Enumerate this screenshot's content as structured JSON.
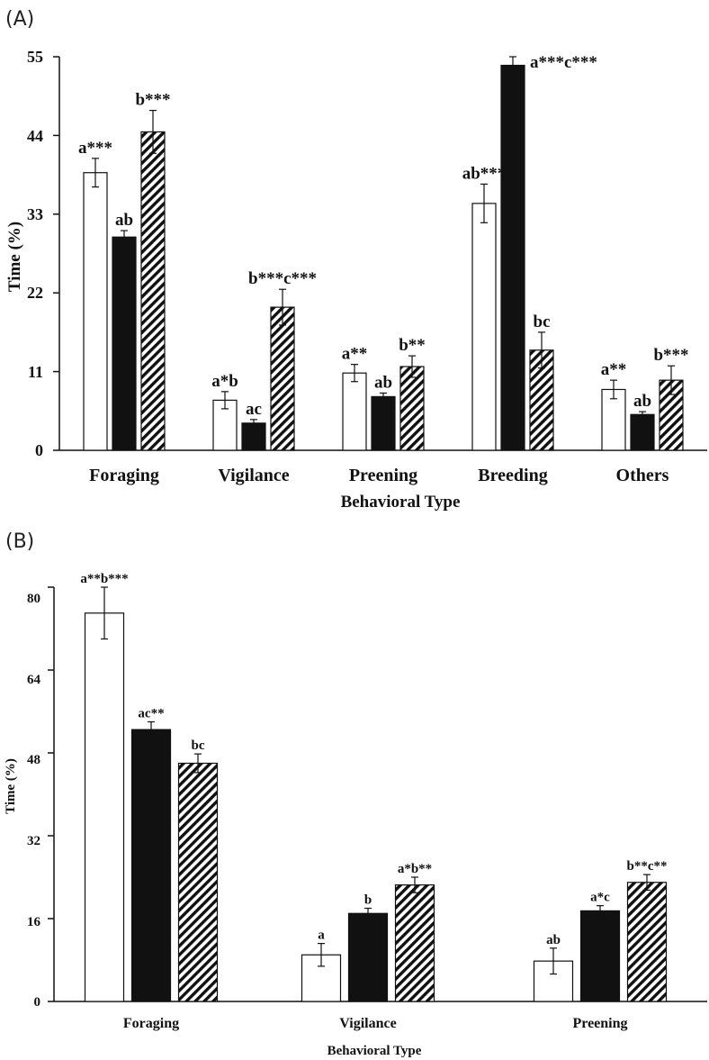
{
  "chart_data": [
    {
      "panel_label": "(A)",
      "type": "bar",
      "ylabel": "Time (%)",
      "xlabel": "Behavioral Type",
      "ylim": [
        0,
        55
      ],
      "yticks": [
        "0",
        "11",
        "22",
        "33",
        "44",
        "55"
      ],
      "ytick_values": [
        0,
        11,
        22,
        33,
        44,
        55
      ],
      "categories": [
        "Foraging",
        "Vigilance",
        "Preening",
        "Breeding",
        "Others"
      ],
      "series": [
        {
          "name": "series-1",
          "fill": "white",
          "values": [
            38.8,
            7.0,
            10.8,
            34.5,
            8.5
          ],
          "errors": [
            2.0,
            1.2,
            1.2,
            2.7,
            1.3
          ],
          "labels": [
            "a***",
            "a*b",
            "a**",
            "ab***",
            "a**"
          ]
        },
        {
          "name": "series-2",
          "fill": "black",
          "values": [
            29.8,
            3.8,
            7.5,
            53.8,
            5.0
          ],
          "errors": [
            0.9,
            0.5,
            0.5,
            1.2,
            0.4
          ],
          "labels": [
            "ab",
            "ac",
            "ab",
            "a***c***",
            "ab"
          ]
        },
        {
          "name": "series-3",
          "fill": "hatched",
          "values": [
            44.5,
            20.0,
            11.7,
            14.0,
            9.8
          ],
          "errors": [
            3.0,
            2.5,
            1.5,
            2.5,
            2.0
          ],
          "labels": [
            "b***",
            "b***c***",
            "b**",
            "bc",
            "b***"
          ]
        }
      ]
    },
    {
      "panel_label": "(B)",
      "type": "bar",
      "ylabel": "Time (%)",
      "xlabel": "Behavioral Type",
      "ylim": [
        0,
        80
      ],
      "yticks": [
        "0",
        "16",
        "32",
        "48",
        "64",
        "80"
      ],
      "ytick_values": [
        0,
        16,
        32,
        48,
        64,
        80
      ],
      "categories": [
        "Foraging",
        "Vigilance",
        "Preening"
      ],
      "series": [
        {
          "name": "series-1",
          "fill": "white",
          "values": [
            75.0,
            9.0,
            7.8
          ],
          "errors": [
            5.0,
            2.2,
            2.5
          ],
          "labels": [
            "a**b***",
            "a",
            "ab"
          ]
        },
        {
          "name": "series-2",
          "fill": "black",
          "values": [
            52.5,
            17.0,
            17.5
          ],
          "errors": [
            1.5,
            1.0,
            1.0
          ],
          "labels": [
            "ac**",
            "b",
            "a*c"
          ]
        },
        {
          "name": "series-3",
          "fill": "hatched",
          "values": [
            46.0,
            22.5,
            23.0
          ],
          "errors": [
            1.8,
            1.5,
            1.5
          ],
          "labels": [
            "bc",
            "a*b**",
            "b**c**"
          ]
        }
      ]
    }
  ]
}
